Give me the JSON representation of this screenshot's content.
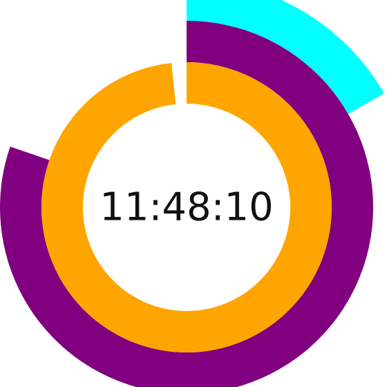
{
  "clock": {
    "time": "11:48:10",
    "hours": 11,
    "minutes": 48,
    "seconds": 10
  },
  "colors": {
    "background": "#ffffff",
    "hour_ring": "#ffa500",
    "minute_ring": "#800080",
    "second_ring": "#00ffff",
    "text": "#111111"
  }
}
